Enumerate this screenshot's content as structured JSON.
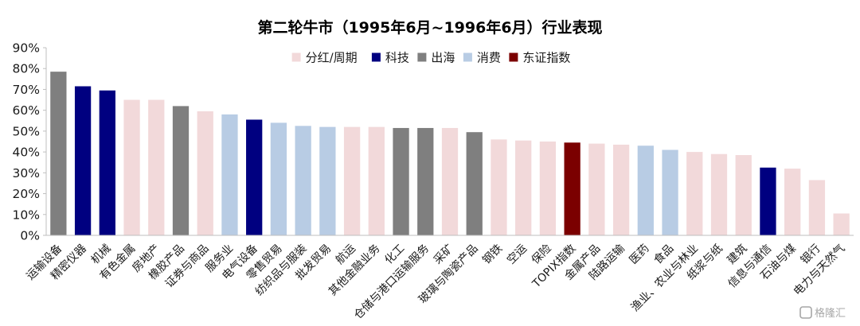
{
  "chart_data": {
    "type": "bar",
    "title": "第二轮牛市（1995年6月~1996年6月）行业表现",
    "ylim": [
      0,
      90
    ],
    "yticks": [
      "0%",
      "10%",
      "20%",
      "30%",
      "40%",
      "50%",
      "60%",
      "70%",
      "80%",
      "90%"
    ],
    "y_unit": "%",
    "grid": false,
    "legend_position": "top",
    "legend": [
      {
        "key": "cyclical",
        "label": "分红/周期",
        "color": "#F2D9DA"
      },
      {
        "key": "tech",
        "label": "科技",
        "color": "#000080"
      },
      {
        "key": "overseas",
        "label": "出海",
        "color": "#7F7F7F"
      },
      {
        "key": "consumer",
        "label": "消费",
        "color": "#B8CCE4"
      },
      {
        "key": "index",
        "label": "东证指数",
        "color": "#7B0000"
      }
    ],
    "categories": [
      "运输设备",
      "精密仪器",
      "机械",
      "有色金属",
      "房地产",
      "橡胶产品",
      "证券与商品",
      "服务业",
      "电气设备",
      "零售贸易",
      "纺织品与服装",
      "批发贸易",
      "航运",
      "其他金融业务",
      "化工",
      "仓储与港口运输服务",
      "采矿",
      "玻璃与陶瓷产品",
      "钢铁",
      "空运",
      "保险",
      "TOPIX指数",
      "金属产品",
      "陆路运输",
      "医药",
      "食品",
      "渔业、农业与林业",
      "纸浆与纸",
      "建筑",
      "信息与通信",
      "石油与煤",
      "银行",
      "电力与天然气"
    ],
    "values": [
      78.5,
      71.5,
      69.5,
      65,
      65,
      62,
      59.5,
      58,
      55.5,
      54,
      52.5,
      52,
      52,
      52,
      51.5,
      51.5,
      51.5,
      49.5,
      46,
      45.5,
      45,
      44.5,
      44,
      43.5,
      43,
      41,
      40,
      39,
      38.5,
      32.5,
      32,
      26.5,
      10.5
    ],
    "groups": [
      "overseas",
      "tech",
      "tech",
      "cyclical",
      "cyclical",
      "overseas",
      "cyclical",
      "consumer",
      "tech",
      "consumer",
      "consumer",
      "consumer",
      "cyclical",
      "cyclical",
      "overseas",
      "overseas",
      "cyclical",
      "overseas",
      "cyclical",
      "cyclical",
      "cyclical",
      "index",
      "cyclical",
      "cyclical",
      "consumer",
      "consumer",
      "cyclical",
      "cyclical",
      "cyclical",
      "tech",
      "cyclical",
      "cyclical",
      "cyclical"
    ]
  },
  "watermark": {
    "icon": "gelonghui-logo-icon",
    "text": "格隆汇"
  }
}
